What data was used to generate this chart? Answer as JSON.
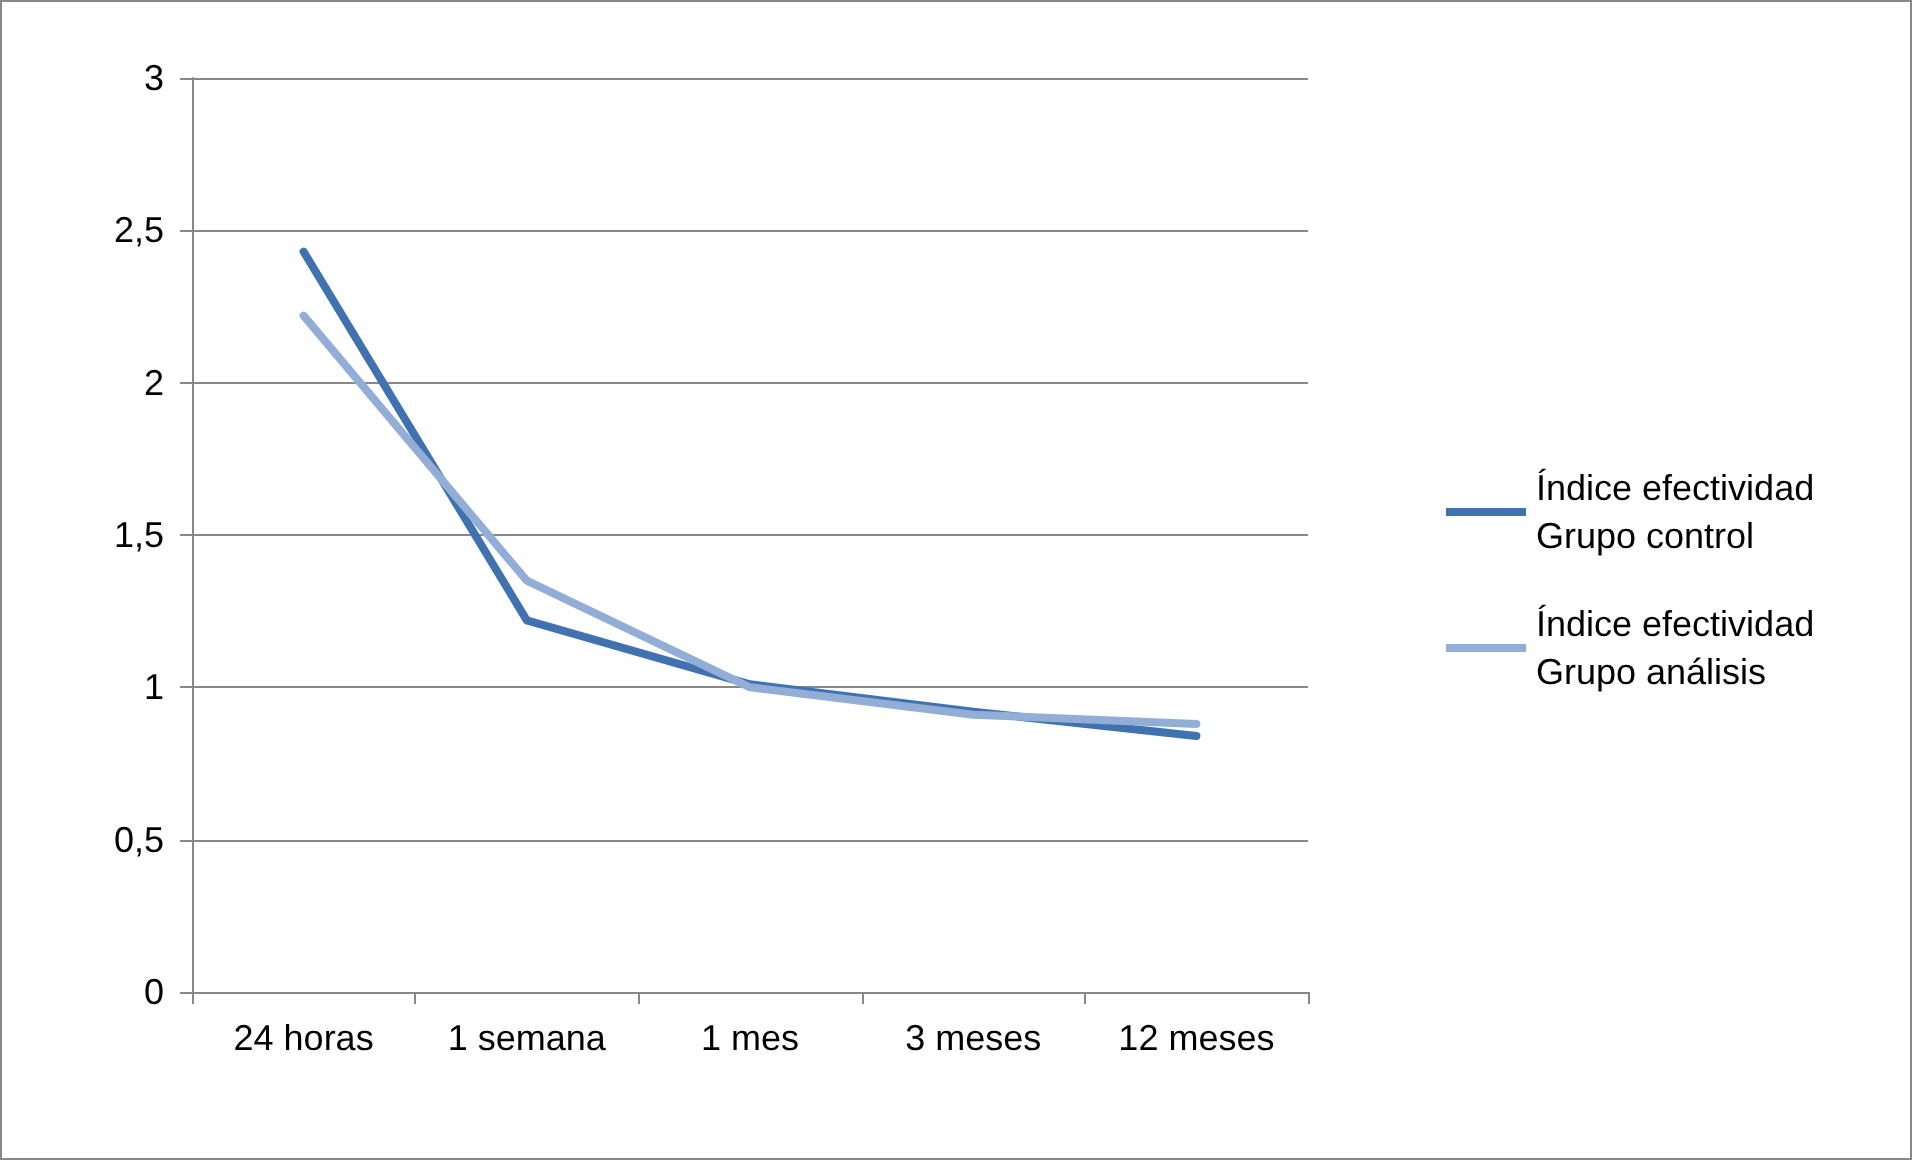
{
  "chart_data": {
    "type": "line",
    "categories": [
      "24 horas",
      "1 semana",
      "1 mes",
      "3 meses",
      "12 meses"
    ],
    "series": [
      {
        "name": "Índice efectividad Grupo control",
        "color": "#4172b0",
        "values": [
          2.43,
          1.22,
          1.01,
          0.92,
          0.84
        ]
      },
      {
        "name": "Índice efectividad Grupo análisis",
        "color": "#93aed6",
        "values": [
          2.22,
          1.35,
          1.0,
          0.91,
          0.88
        ]
      }
    ],
    "ylim": [
      0,
      3
    ],
    "yticks": [
      0,
      {
        "value": 0.5,
        "label": "0,5"
      },
      1,
      {
        "value": 1.5,
        "label": "1,5"
      },
      2,
      {
        "value": 2.5,
        "label": "2,5"
      },
      3
    ],
    "grid": "y",
    "legend": "right",
    "marker": "none",
    "line_style": "solid"
  }
}
